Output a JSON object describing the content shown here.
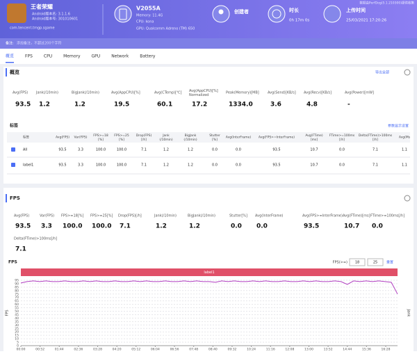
{
  "header": {
    "app": {
      "name": "王者荣耀",
      "version_name": "Android版本名: 3.1.1.6",
      "version_code": "Android版本号: 301010601",
      "package": "com.tencent.tmgp.sgame"
    },
    "device": {
      "model": "V2055A",
      "memory": "Memory: 11.4G",
      "cpu": "CPU: kona",
      "gpu": "GPU: Qualcomm Adreno (TM) 650"
    },
    "creator": "创建者",
    "duration": {
      "label": "时长",
      "value": "0h 17m 0s"
    },
    "upload": {
      "label": "上传时间",
      "value": "25/03/2021 17:20:26"
    },
    "source": "数据由PerfDog(5.1.210300)提供收集"
  },
  "note": {
    "label": "备注:",
    "placeholder": "添加备注，不超过200个字符"
  },
  "tabs": [
    "概览",
    "FPS",
    "CPU",
    "Memory",
    "GPU",
    "Network",
    "Battery"
  ],
  "overview": {
    "title": "概览",
    "export": "导出全部",
    "metrics": [
      {
        "label": "Avg(FPS)",
        "value": "93.5"
      },
      {
        "label": "Jank(/10min)",
        "value": "1.2"
      },
      {
        "label": "BigJank(/10min)",
        "value": "1.2"
      },
      {
        "label": "Avg(AppCPU)[%]",
        "value": "19.5"
      },
      {
        "label": "Avg(CTemp)[℃]",
        "value": "60.1"
      },
      {
        "label": "Avg(AppCPU)[%]\nNormalized",
        "value": "17.2"
      },
      {
        "label": "Peak(Memory)[MB]",
        "value": "1334.0"
      },
      {
        "label": "Avg(Send)[KB/s]",
        "value": "3.6"
      },
      {
        "label": "Avg(Recv)[KB/s]",
        "value": "4.8"
      },
      {
        "label": "Avg(Power)[mW]",
        "value": "-"
      }
    ]
  },
  "labels_table": {
    "title": "标签",
    "settings": "参数显示设置",
    "columns": [
      "标签",
      "Avg(FPS)",
      "Var(FPS)",
      "FPS>=18\n[%]",
      "FPS>=25\n[%]",
      "Drop(FPS)\n[/h]",
      "Jank\n(/10min)",
      "BigJank\n(/10min)",
      "Stutter\n[%]",
      "Avg(InterFrame)",
      "Avg(FPS>=InterFrame)",
      "Avg(FTime)\n[ms]",
      "FTime>=100ms\n[/h]",
      "Delta(FTime)>100ms\n[/h]",
      "Avg(Ms"
    ],
    "rows": [
      [
        "All",
        "93.5",
        "3.3",
        "100.0",
        "100.0",
        "7.1",
        "1.2",
        "1.2",
        "0.0",
        "0.0",
        "93.5",
        "10.7",
        "0.0",
        "7.1",
        "1.1"
      ],
      [
        "label1",
        "93.5",
        "3.3",
        "100.0",
        "100.0",
        "7.1",
        "1.2",
        "1.2",
        "0.0",
        "0.0",
        "93.5",
        "10.7",
        "0.0",
        "7.1",
        "1.1"
      ]
    ]
  },
  "fps": {
    "title": "FPS",
    "metrics": [
      {
        "label": "Avg(FPS)",
        "value": "93.5"
      },
      {
        "label": "Var(FPS)",
        "value": "3.3"
      },
      {
        "label": "FPS>=18[%]",
        "value": "100.0"
      },
      {
        "label": "FPS>=25[%]",
        "value": "100.0"
      },
      {
        "label": "Drop(FPS)[/h]",
        "value": "7.1"
      },
      {
        "label": "Jank(/10min)",
        "value": "1.2"
      },
      {
        "label": "BigJank(/10min)",
        "value": "1.2"
      },
      {
        "label": "Stutter[%]",
        "value": "0.0"
      },
      {
        "label": "Avg(InterFrame)",
        "value": "0.0"
      },
      {
        "label": "Avg(FPS>=InterFrame)",
        "value": "93.5"
      },
      {
        "label": "Avg(FTime)[ms]",
        "value": "10.7"
      },
      {
        "label": "FTime>=100ms[/h]",
        "value": "0.0"
      },
      {
        "label": "Delta(FTime)>100ms[/h]",
        "value": "7.1"
      }
    ]
  },
  "chart_data": {
    "type": "line",
    "title": "FPS",
    "y_label": "FPS",
    "y2_label": "Jank",
    "threshold_label": "FPS(>=)",
    "thresholds": [
      "18",
      "25"
    ],
    "reset": "重置",
    "band_label": "label1",
    "color": "#b03cc0",
    "grid": true,
    "x": [
      0,
      17,
      34,
      51,
      68,
      85,
      102,
      119,
      136,
      153,
      170,
      187,
      204,
      221,
      238,
      255,
      272,
      289,
      306,
      323,
      340,
      357,
      374,
      391,
      408,
      425,
      442,
      459,
      476,
      493,
      510,
      527,
      544,
      561,
      578,
      595,
      612,
      629,
      646,
      663,
      680,
      697,
      714,
      731,
      748,
      765,
      782,
      799,
      816,
      833,
      850,
      867,
      884,
      901,
      918,
      935,
      952,
      969,
      986,
      1003,
      1020
    ],
    "values": [
      91,
      93,
      94,
      93,
      94,
      93,
      93,
      94,
      93,
      93,
      94,
      93,
      94,
      93,
      93,
      94,
      93,
      93,
      94,
      93,
      94,
      93,
      93,
      94,
      93,
      93,
      94,
      93,
      94,
      93,
      93,
      92,
      94,
      93,
      94,
      93,
      93,
      94,
      93,
      94,
      93,
      93,
      94,
      93,
      93,
      94,
      93,
      94,
      93,
      93,
      94,
      93,
      89,
      94,
      93,
      94,
      93,
      94,
      93,
      92,
      75
    ],
    "xlim": [
      0,
      1020
    ],
    "ylim": [
      0,
      100
    ],
    "yticks": [
      0,
      5,
      10,
      15,
      20,
      25,
      30,
      35,
      40,
      45,
      50,
      55,
      60,
      65,
      70,
      75,
      80,
      85,
      90,
      95
    ],
    "xticks": [
      {
        "value": 0,
        "label": "00:00"
      },
      {
        "value": 52,
        "label": "00:52"
      },
      {
        "value": 104,
        "label": "01:44"
      },
      {
        "value": 156,
        "label": "02:36"
      },
      {
        "value": 208,
        "label": "03:28"
      },
      {
        "value": 260,
        "label": "04:20"
      },
      {
        "value": 312,
        "label": "05:12"
      },
      {
        "value": 364,
        "label": "06:04"
      },
      {
        "value": 416,
        "label": "06:56"
      },
      {
        "value": 468,
        "label": "07:48"
      },
      {
        "value": 520,
        "label": "08:40"
      },
      {
        "value": 572,
        "label": "09:32"
      },
      {
        "value": 624,
        "label": "10:24"
      },
      {
        "value": 676,
        "label": "11:16"
      },
      {
        "value": 728,
        "label": "12:08"
      },
      {
        "value": 780,
        "label": "13:00"
      },
      {
        "value": 832,
        "label": "13:52"
      },
      {
        "value": 884,
        "label": "14:44"
      },
      {
        "value": 936,
        "label": "15:36"
      },
      {
        "value": 988,
        "label": "16:28"
      }
    ]
  }
}
